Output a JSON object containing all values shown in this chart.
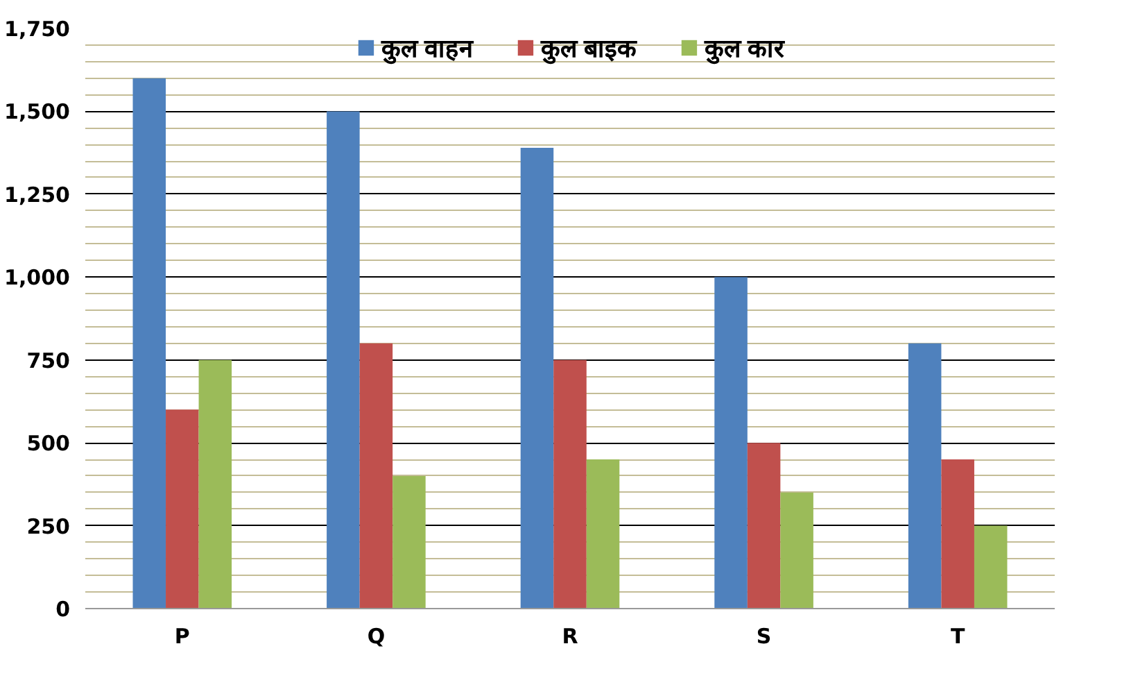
{
  "chart_data": {
    "type": "bar",
    "categories": [
      "P",
      "Q",
      "R",
      "S",
      "T"
    ],
    "series": [
      {
        "name": "कुल वाहन",
        "color": "#4f81bd",
        "values": [
          1600,
          1500,
          1390,
          1000,
          800
        ]
      },
      {
        "name": "कुल बाइक",
        "color": "#c0504d",
        "values": [
          600,
          800,
          750,
          500,
          450
        ]
      },
      {
        "name": "कुल कार",
        "color": "#9bbb59",
        "values": [
          750,
          400,
          450,
          350,
          250
        ]
      }
    ],
    "ylim": [
      0,
      1750
    ],
    "yticks": [
      0,
      {
        "value": 50,
        "label": null
      },
      {
        "value": 100,
        "label": null
      },
      {
        "value": 150,
        "label": null
      },
      {
        "value": 200,
        "label": null
      },
      {
        "value": 250,
        "label": "250"
      },
      {
        "value": 300,
        "label": null
      },
      {
        "value": 350,
        "label": null
      },
      {
        "value": 400,
        "label": null
      },
      {
        "value": 450,
        "label": null
      },
      {
        "value": 500,
        "label": "500"
      },
      {
        "value": 550,
        "label": null
      },
      {
        "value": 600,
        "label": null
      },
      {
        "value": 650,
        "label": null
      },
      {
        "value": 700,
        "label": null
      },
      {
        "value": 750,
        "label": "750"
      },
      {
        "value": 800,
        "label": null
      },
      {
        "value": 850,
        "label": null
      },
      {
        "value": 900,
        "label": null
      },
      {
        "value": 950,
        "label": null
      },
      {
        "value": 1000,
        "label": "1,000"
      },
      {
        "value": 1050,
        "label": null
      },
      {
        "value": 1100,
        "label": null
      },
      {
        "value": 1150,
        "label": null
      },
      {
        "value": 1200,
        "label": null
      },
      {
        "value": 1250,
        "label": "1,250"
      },
      {
        "value": 1300,
        "label": null
      },
      {
        "value": 1350,
        "label": null
      },
      {
        "value": 1400,
        "label": null
      },
      {
        "value": 1450,
        "label": null
      },
      {
        "value": 1500,
        "label": "1,500"
      },
      {
        "value": 1550,
        "label": null
      },
      {
        "value": 1600,
        "label": null
      },
      {
        "value": 1650,
        "label": null
      },
      {
        "value": 1700,
        "label": null
      },
      {
        "value": 1750,
        "label": "1,750"
      }
    ],
    "grid": "y",
    "legend": "top"
  }
}
